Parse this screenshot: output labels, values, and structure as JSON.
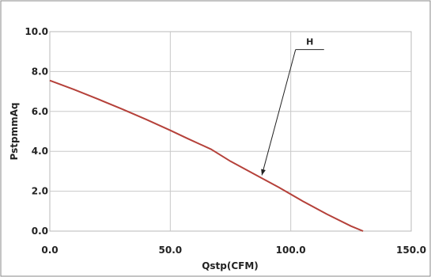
{
  "chart_data": {
    "type": "line",
    "title": "",
    "xlabel": "Qstp(CFM)",
    "ylabel": "PstpmmAq",
    "xlim": [
      0,
      150
    ],
    "ylim": [
      0,
      10
    ],
    "x_ticks": [
      0,
      50,
      100,
      150
    ],
    "x_tick_labels": [
      "0.0",
      "50.0",
      "100.0",
      "150.0"
    ],
    "y_ticks": [
      0,
      2,
      4,
      6,
      8,
      10
    ],
    "y_tick_labels": [
      "0.0",
      "2.0",
      "4.0",
      "6.0",
      "8.0",
      "10.0"
    ],
    "grid": true,
    "legend": "none",
    "series": [
      {
        "color": "#b5413a",
        "x": [
          0,
          10,
          20,
          30,
          40,
          50,
          57,
          67,
          75,
          85,
          95,
          105,
          115,
          125,
          130
        ],
        "y": [
          7.55,
          7.1,
          6.62,
          6.12,
          5.6,
          5.05,
          4.65,
          4.1,
          3.5,
          2.85,
          2.2,
          1.5,
          0.85,
          0.25,
          0.0
        ]
      }
    ],
    "annotations": [
      {
        "text": "H",
        "arrow_to": {
          "x": 88,
          "y": 2.8
        },
        "anchor": {
          "x": 102,
          "y": 9.1
        }
      }
    ]
  }
}
